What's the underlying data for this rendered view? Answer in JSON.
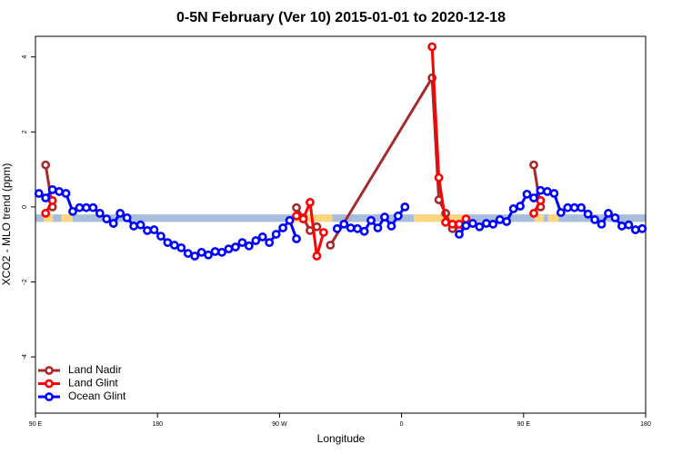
{
  "chart_data": {
    "type": "line",
    "title": "0-5N February (Ver 10)   2015-01-01 to 2020-12-18",
    "xlabel": "Longitude",
    "ylabel": "XCO2 - MLO trend (ppm)",
    "xlim": [
      90,
      540
    ],
    "xticks": [
      {
        "value": 90,
        "label": "90 E"
      },
      {
        "value": 180,
        "label": "180"
      },
      {
        "value": 270,
        "label": "90 W"
      },
      {
        "value": 360,
        "label": "0"
      },
      {
        "value": 450,
        "label": "90 E"
      },
      {
        "value": 540,
        "label": "180"
      }
    ],
    "ylim": [
      -5.5,
      4.55
    ],
    "yticks": [
      -4,
      -2,
      0,
      2,
      4
    ],
    "legend": "bottom-left",
    "background_band": {
      "ylim": [
        -0.4,
        -0.2
      ],
      "color": "#a7bddb",
      "land_color": "#fcd77f",
      "land_ranges": [
        [
          96,
          103
        ],
        [
          109,
          117.5
        ],
        [
          280,
          309
        ],
        [
          369,
          409
        ],
        [
          458,
          465
        ],
        [
          468,
          476
        ]
      ]
    },
    "series": [
      {
        "name": "Land Nadir",
        "color": "#a52a2a",
        "x": [
          97.5,
          102.5,
          107.5,
          282.5,
          287.5,
          292.5,
          297.5,
          302.5,
          307.5,
          382.5,
          387.5,
          392.5,
          397.5,
          402.5,
          407.5,
          457.5,
          462.5
        ],
        "values": [
          1.12,
          0.0,
          null,
          -0.02,
          -0.29,
          -0.63,
          -0.53,
          null,
          -1.02,
          3.44,
          0.19,
          -0.17,
          -0.58,
          -0.63,
          null,
          1.12,
          0.0
        ]
      },
      {
        "name": "Land Glint",
        "color": "#ff0000",
        "x": [
          97.5,
          102.5,
          107.5,
          282.5,
          287.5,
          292.5,
          297.5,
          302.5,
          307.5,
          382.5,
          387.5,
          392.5,
          397.5,
          402.5,
          407.5,
          412.5,
          457.5,
          462.5
        ],
        "values": [
          -0.17,
          0.17,
          null,
          -0.24,
          -0.32,
          0.12,
          -1.31,
          -0.68,
          null,
          4.27,
          0.78,
          -0.41,
          -0.46,
          -0.46,
          -0.32,
          null,
          -0.17,
          0.17
        ]
      },
      {
        "name": "Ocean Glint",
        "color": "#0000ff",
        "x": [
          92.5,
          97.5,
          102.5,
          107.5,
          112.5,
          117.5,
          122.5,
          127.5,
          132.5,
          137.5,
          142.5,
          147.5,
          152.5,
          157.5,
          162.5,
          167.5,
          172.5,
          177.5,
          182.5,
          187.5,
          192.5,
          197.5,
          202.5,
          207.5,
          212.5,
          217.5,
          222.5,
          227.5,
          232.5,
          237.5,
          242.5,
          247.5,
          252.5,
          257.5,
          262.5,
          267.5,
          272.5,
          277.5,
          282.5,
          287.5,
          292.5,
          297.5,
          302.5,
          307.5,
          312.5,
          317.5,
          322.5,
          327.5,
          332.5,
          337.5,
          342.5,
          347.5,
          352.5,
          357.5,
          362.5,
          367.5,
          372.5,
          377.5,
          382.5,
          387.5,
          392.5,
          397.5,
          402.5,
          407.5,
          412.5,
          417.5,
          422.5,
          427.5,
          432.5,
          437.5,
          442.5,
          447.5,
          452.5,
          457.5,
          462.5,
          467.5,
          472.5,
          477.5,
          482.5,
          487.5,
          492.5,
          497.5,
          502.5,
          507.5,
          512.5,
          517.5,
          522.5,
          527.5,
          532.5,
          537.5
        ],
        "values": [
          0.36,
          0.24,
          0.46,
          0.41,
          0.36,
          -0.12,
          -0.02,
          -0.02,
          -0.02,
          -0.17,
          -0.32,
          -0.44,
          -0.17,
          -0.29,
          -0.51,
          -0.48,
          -0.63,
          -0.61,
          -0.78,
          -0.95,
          -1.02,
          -1.09,
          -1.24,
          -1.31,
          -1.21,
          -1.28,
          -1.19,
          -1.21,
          -1.12,
          -1.07,
          -0.95,
          -1.04,
          -0.9,
          -0.8,
          -0.95,
          -0.73,
          -0.56,
          -0.36,
          -0.85,
          null,
          null,
          null,
          null,
          null,
          -0.58,
          -0.46,
          -0.56,
          -0.58,
          -0.65,
          -0.36,
          -0.56,
          -0.27,
          -0.51,
          -0.24,
          0.0,
          null,
          null,
          null,
          null,
          null,
          null,
          null,
          -0.73,
          -0.5,
          -0.44,
          -0.53,
          -0.44,
          -0.46,
          -0.34,
          -0.39,
          -0.05,
          0.02,
          0.34,
          0.24,
          0.44,
          0.41,
          0.36,
          -0.15,
          -0.02,
          -0.02,
          -0.02,
          -0.19,
          -0.34,
          -0.46,
          -0.17,
          -0.29,
          -0.51,
          -0.48,
          -0.61,
          -0.58
        ]
      }
    ]
  }
}
